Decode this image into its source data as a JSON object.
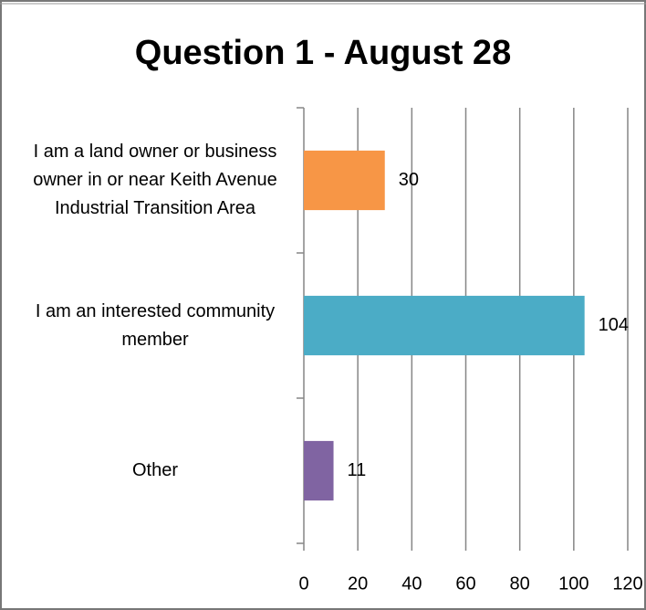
{
  "chart_data": {
    "type": "hbar",
    "title": "Question 1 - August 28",
    "categories": [
      "I am a land owner or business owner in or near Keith Avenue Industrial Transition Area",
      "I am an interested community member",
      "Other"
    ],
    "series": [
      {
        "colors": [
          "#f79646",
          "#4bacc6",
          "#8064a2"
        ],
        "values": [
          30,
          104,
          11
        ]
      }
    ],
    "xlim": [
      0,
      120
    ],
    "xticks": [
      0,
      20,
      40,
      60,
      80,
      100,
      120
    ],
    "grid": true
  }
}
